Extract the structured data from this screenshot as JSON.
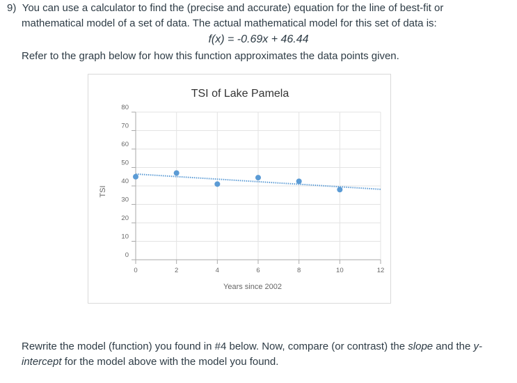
{
  "question": {
    "number": "9)",
    "line1": "You can use a calculator to find the (precise and accurate) equation for the line of best-fit or",
    "line2": "mathematical model of a set of data. The actual mathematical model for this set of data is:",
    "formula": "f(x) = -0.69x + 46.44",
    "line3": "Refer to the graph below for how this function approximates the data points given."
  },
  "chart_data": {
    "type": "scatter",
    "title": "TSI of Lake Pamela",
    "xlabel": "Years since 2002",
    "ylabel": "TSI",
    "xlim": [
      0,
      12
    ],
    "ylim": [
      0,
      80
    ],
    "x_ticks": [
      0,
      2,
      4,
      6,
      8,
      10,
      12
    ],
    "y_ticks": [
      0,
      10,
      20,
      30,
      40,
      50,
      60,
      70,
      80
    ],
    "grid": true,
    "series": [
      {
        "x": [
          0,
          2,
          4,
          6,
          8,
          10
        ],
        "y": [
          45,
          47,
          41,
          44.5,
          42.5,
          38
        ],
        "color": "#5b9bd5"
      }
    ],
    "trendline": {
      "slope": -0.69,
      "intercept": 46.44,
      "style": "dotted",
      "color": "#5b9bd5"
    }
  },
  "footer": {
    "line1_a": "Rewrite the model (function) you found in #4 below. Now, compare (or contrast) the ",
    "line1_slope": "slope",
    "line1_b": " and the ",
    "line1_y": "y-",
    "line2_intercept": "intercept",
    "line2_b": " for the model above with the model you found."
  }
}
